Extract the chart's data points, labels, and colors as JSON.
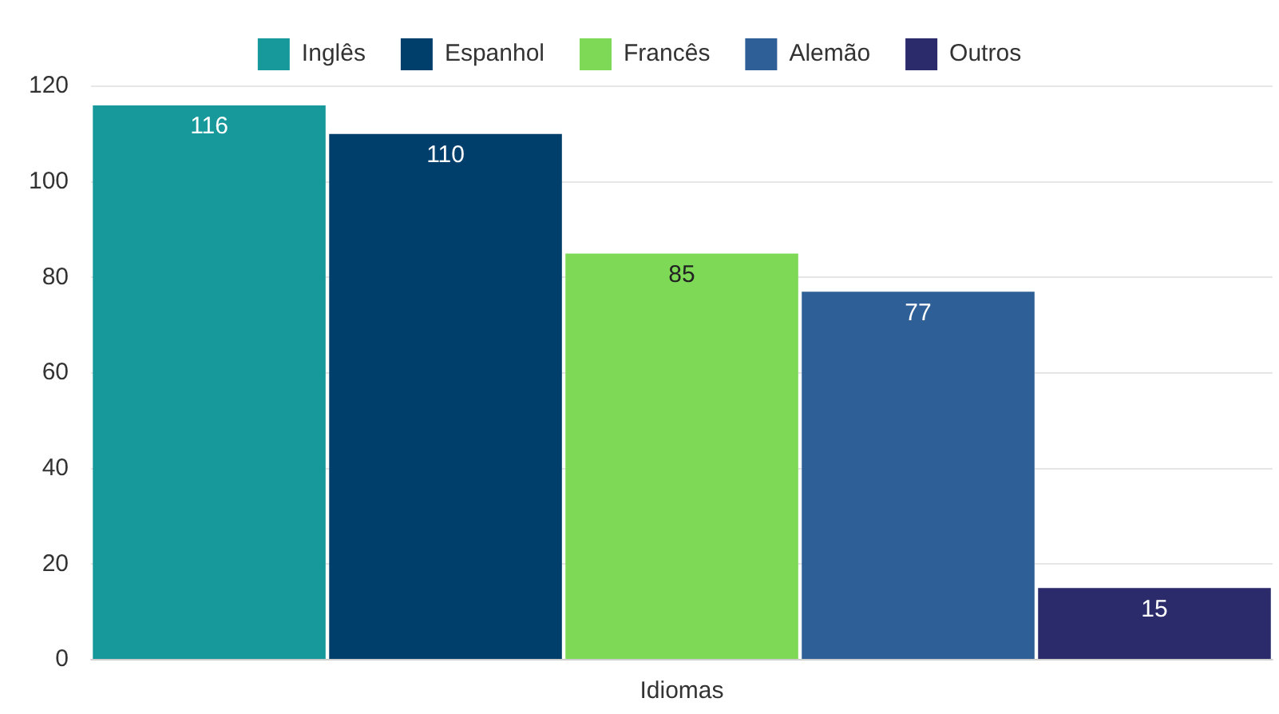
{
  "chart_data": {
    "type": "bar",
    "categories": [
      "Idiomas"
    ],
    "series": [
      {
        "name": "Inglês",
        "color": "#17999b",
        "values": [
          116
        ]
      },
      {
        "name": "Espanhol",
        "color": "#003f6b",
        "values": [
          110
        ]
      },
      {
        "name": "Francês",
        "color": "#7ed957",
        "values": [
          85
        ]
      },
      {
        "name": "Alemão",
        "color": "#2e5f96",
        "values": [
          77
        ]
      },
      {
        "name": "Outros",
        "color": "#2b2a6b",
        "values": [
          15
        ]
      }
    ],
    "ylim": [
      0,
      120
    ],
    "yticks": [
      0,
      20,
      40,
      60,
      80,
      100,
      120
    ],
    "grid": "y",
    "legend": "top",
    "data_labels": true
  }
}
